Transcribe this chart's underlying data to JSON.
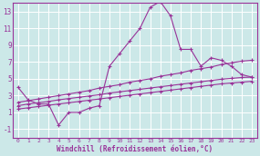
{
  "xlabel": "Windchill (Refroidissement éolien,°C)",
  "bg_color": "#cce8e8",
  "line_color": "#993399",
  "grid_color": "#ffffff",
  "x_data": [
    0,
    1,
    2,
    3,
    4,
    5,
    6,
    7,
    8,
    9,
    10,
    11,
    12,
    13,
    14,
    15,
    16,
    17,
    18,
    19,
    20,
    21,
    22,
    23
  ],
  "line1_y": [
    4.0,
    2.5,
    2.0,
    2.0,
    -0.5,
    1.0,
    1.0,
    1.5,
    1.8,
    6.5,
    8.0,
    9.5,
    11.0,
    13.5,
    14.2,
    12.5,
    8.5,
    8.5,
    6.5,
    7.5,
    7.2,
    6.5,
    5.5,
    5.2
  ],
  "line2_y": [
    2.2,
    2.4,
    2.6,
    2.8,
    3.0,
    3.2,
    3.4,
    3.6,
    3.9,
    4.1,
    4.3,
    4.6,
    4.8,
    5.0,
    5.3,
    5.5,
    5.7,
    6.0,
    6.2,
    6.4,
    6.7,
    6.9,
    7.1,
    7.2
  ],
  "line3_y": [
    1.8,
    2.0,
    2.15,
    2.3,
    2.5,
    2.65,
    2.8,
    2.95,
    3.1,
    3.3,
    3.45,
    3.6,
    3.75,
    3.9,
    4.05,
    4.2,
    4.35,
    4.5,
    4.65,
    4.8,
    4.95,
    5.05,
    5.15,
    5.2
  ],
  "line4_y": [
    1.4,
    1.55,
    1.7,
    1.85,
    2.0,
    2.15,
    2.3,
    2.45,
    2.6,
    2.75,
    2.9,
    3.05,
    3.2,
    3.35,
    3.5,
    3.65,
    3.8,
    3.95,
    4.1,
    4.25,
    4.4,
    4.5,
    4.6,
    4.7
  ],
  "ylim": [
    -2,
    14
  ],
  "xlim": [
    -0.5,
    23.5
  ],
  "yticks": [
    -1,
    1,
    3,
    5,
    7,
    9,
    11,
    13
  ],
  "xticks": [
    0,
    1,
    2,
    3,
    4,
    5,
    6,
    7,
    8,
    9,
    10,
    11,
    12,
    13,
    14,
    15,
    16,
    17,
    18,
    19,
    20,
    21,
    22,
    23
  ]
}
